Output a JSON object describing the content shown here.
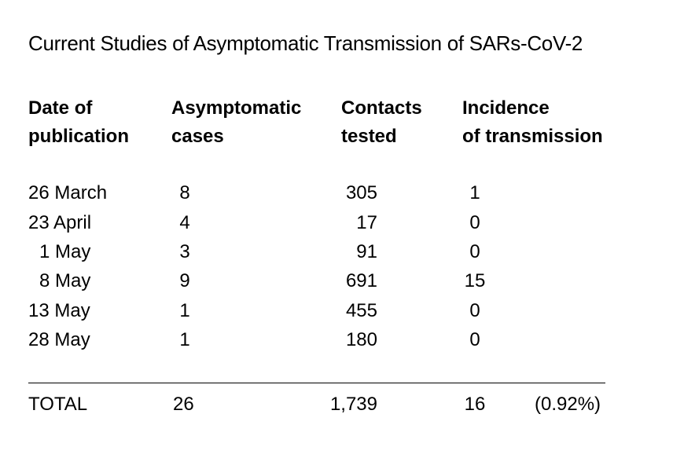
{
  "title": "Current Studies of Asymptomatic Transmission of SARs-CoV-2",
  "headers": {
    "date": [
      "Date of",
      "publication"
    ],
    "asymptomatic": [
      "Asymptomatic",
      "cases"
    ],
    "contacts": [
      "Contacts",
      "tested"
    ],
    "incidence": [
      "Incidence",
      "of transmission"
    ]
  },
  "rows": [
    {
      "date": "26 March",
      "asymptomatic": "8",
      "contacts": "305",
      "incidence": "1"
    },
    {
      "date": "23 April",
      "asymptomatic": "4",
      "contacts": "17",
      "incidence": "0"
    },
    {
      "date": "1 May",
      "asymptomatic": "3",
      "contacts": "91",
      "incidence": "0"
    },
    {
      "date": "8 May",
      "asymptomatic": "9",
      "contacts": "691",
      "incidence": "15"
    },
    {
      "date": "13 May",
      "asymptomatic": "1",
      "contacts": "455",
      "incidence": "0"
    },
    {
      "date": "28 May",
      "asymptomatic": "1",
      "contacts": "180",
      "incidence": "0"
    }
  ],
  "total": {
    "label": "TOTAL",
    "asymptomatic": "26",
    "contacts": "1,739",
    "incidence": "16",
    "percent": "(0.92%)"
  }
}
